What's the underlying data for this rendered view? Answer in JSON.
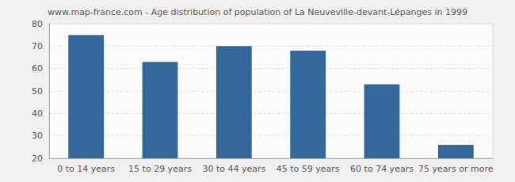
{
  "chart_data": {
    "type": "bar",
    "title": "www.map-france.com - Age distribution of population of La Neuveville-devant-Lépanges in 1999",
    "categories": [
      "0 to 14 years",
      "15 to 29 years",
      "30 to 44 years",
      "45 to 59 years",
      "60 to 74 years",
      "75 years or more"
    ],
    "values": [
      75,
      63,
      70,
      68,
      53,
      26
    ],
    "color": "#336699",
    "ylim": [
      20,
      80
    ],
    "yticks": [
      20,
      30,
      40,
      50,
      60,
      70,
      80
    ],
    "grid": true
  }
}
